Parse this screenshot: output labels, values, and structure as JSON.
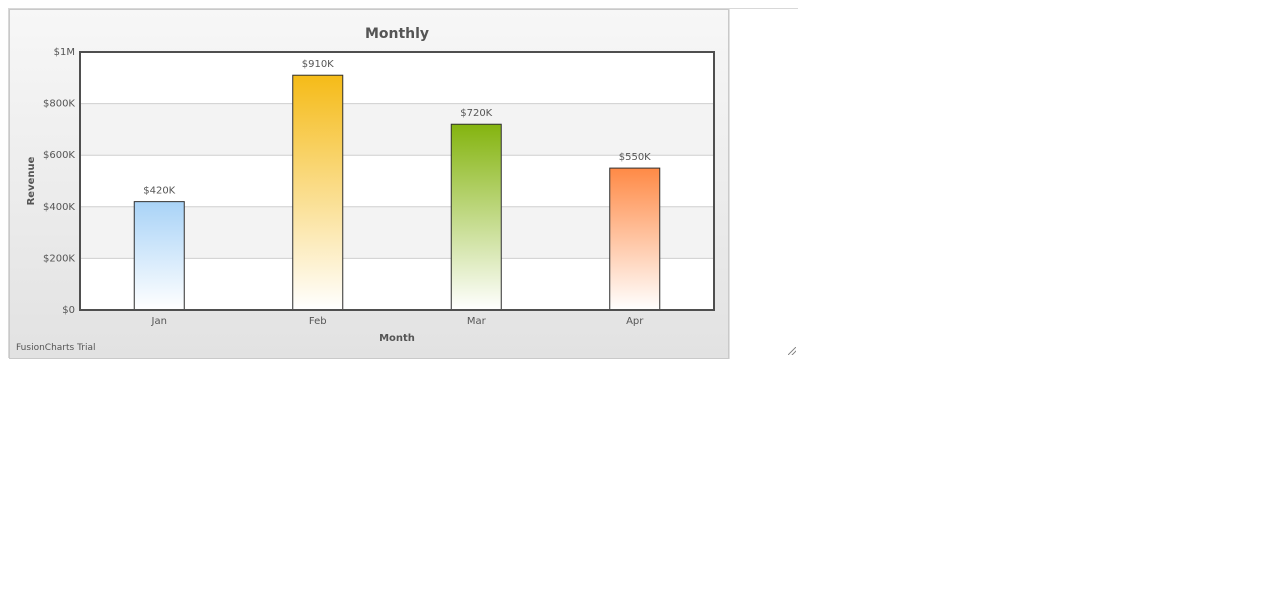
{
  "chart_data": {
    "type": "bar",
    "title": "Monthly",
    "xlabel": "Month",
    "ylabel": "Revenue",
    "categories": [
      "Jan",
      "Feb",
      "Mar",
      "Apr"
    ],
    "values": [
      420000,
      910000,
      720000,
      550000
    ],
    "value_labels": [
      "$420K",
      "$910K",
      "$720K",
      "$550K"
    ],
    "ylim": [
      0,
      1000000
    ],
    "y_ticks": [
      0,
      200000,
      400000,
      600000,
      800000,
      1000000
    ],
    "y_tick_labels": [
      "$0",
      "$200K",
      "$400K",
      "$600K",
      "$800K",
      "$1M"
    ],
    "grid": true,
    "bar_colors": [
      "#a9d3f7",
      "#f5bb18",
      "#84b40f",
      "#ff8a46"
    ]
  },
  "footer": {
    "watermark": "FusionCharts Trial"
  }
}
